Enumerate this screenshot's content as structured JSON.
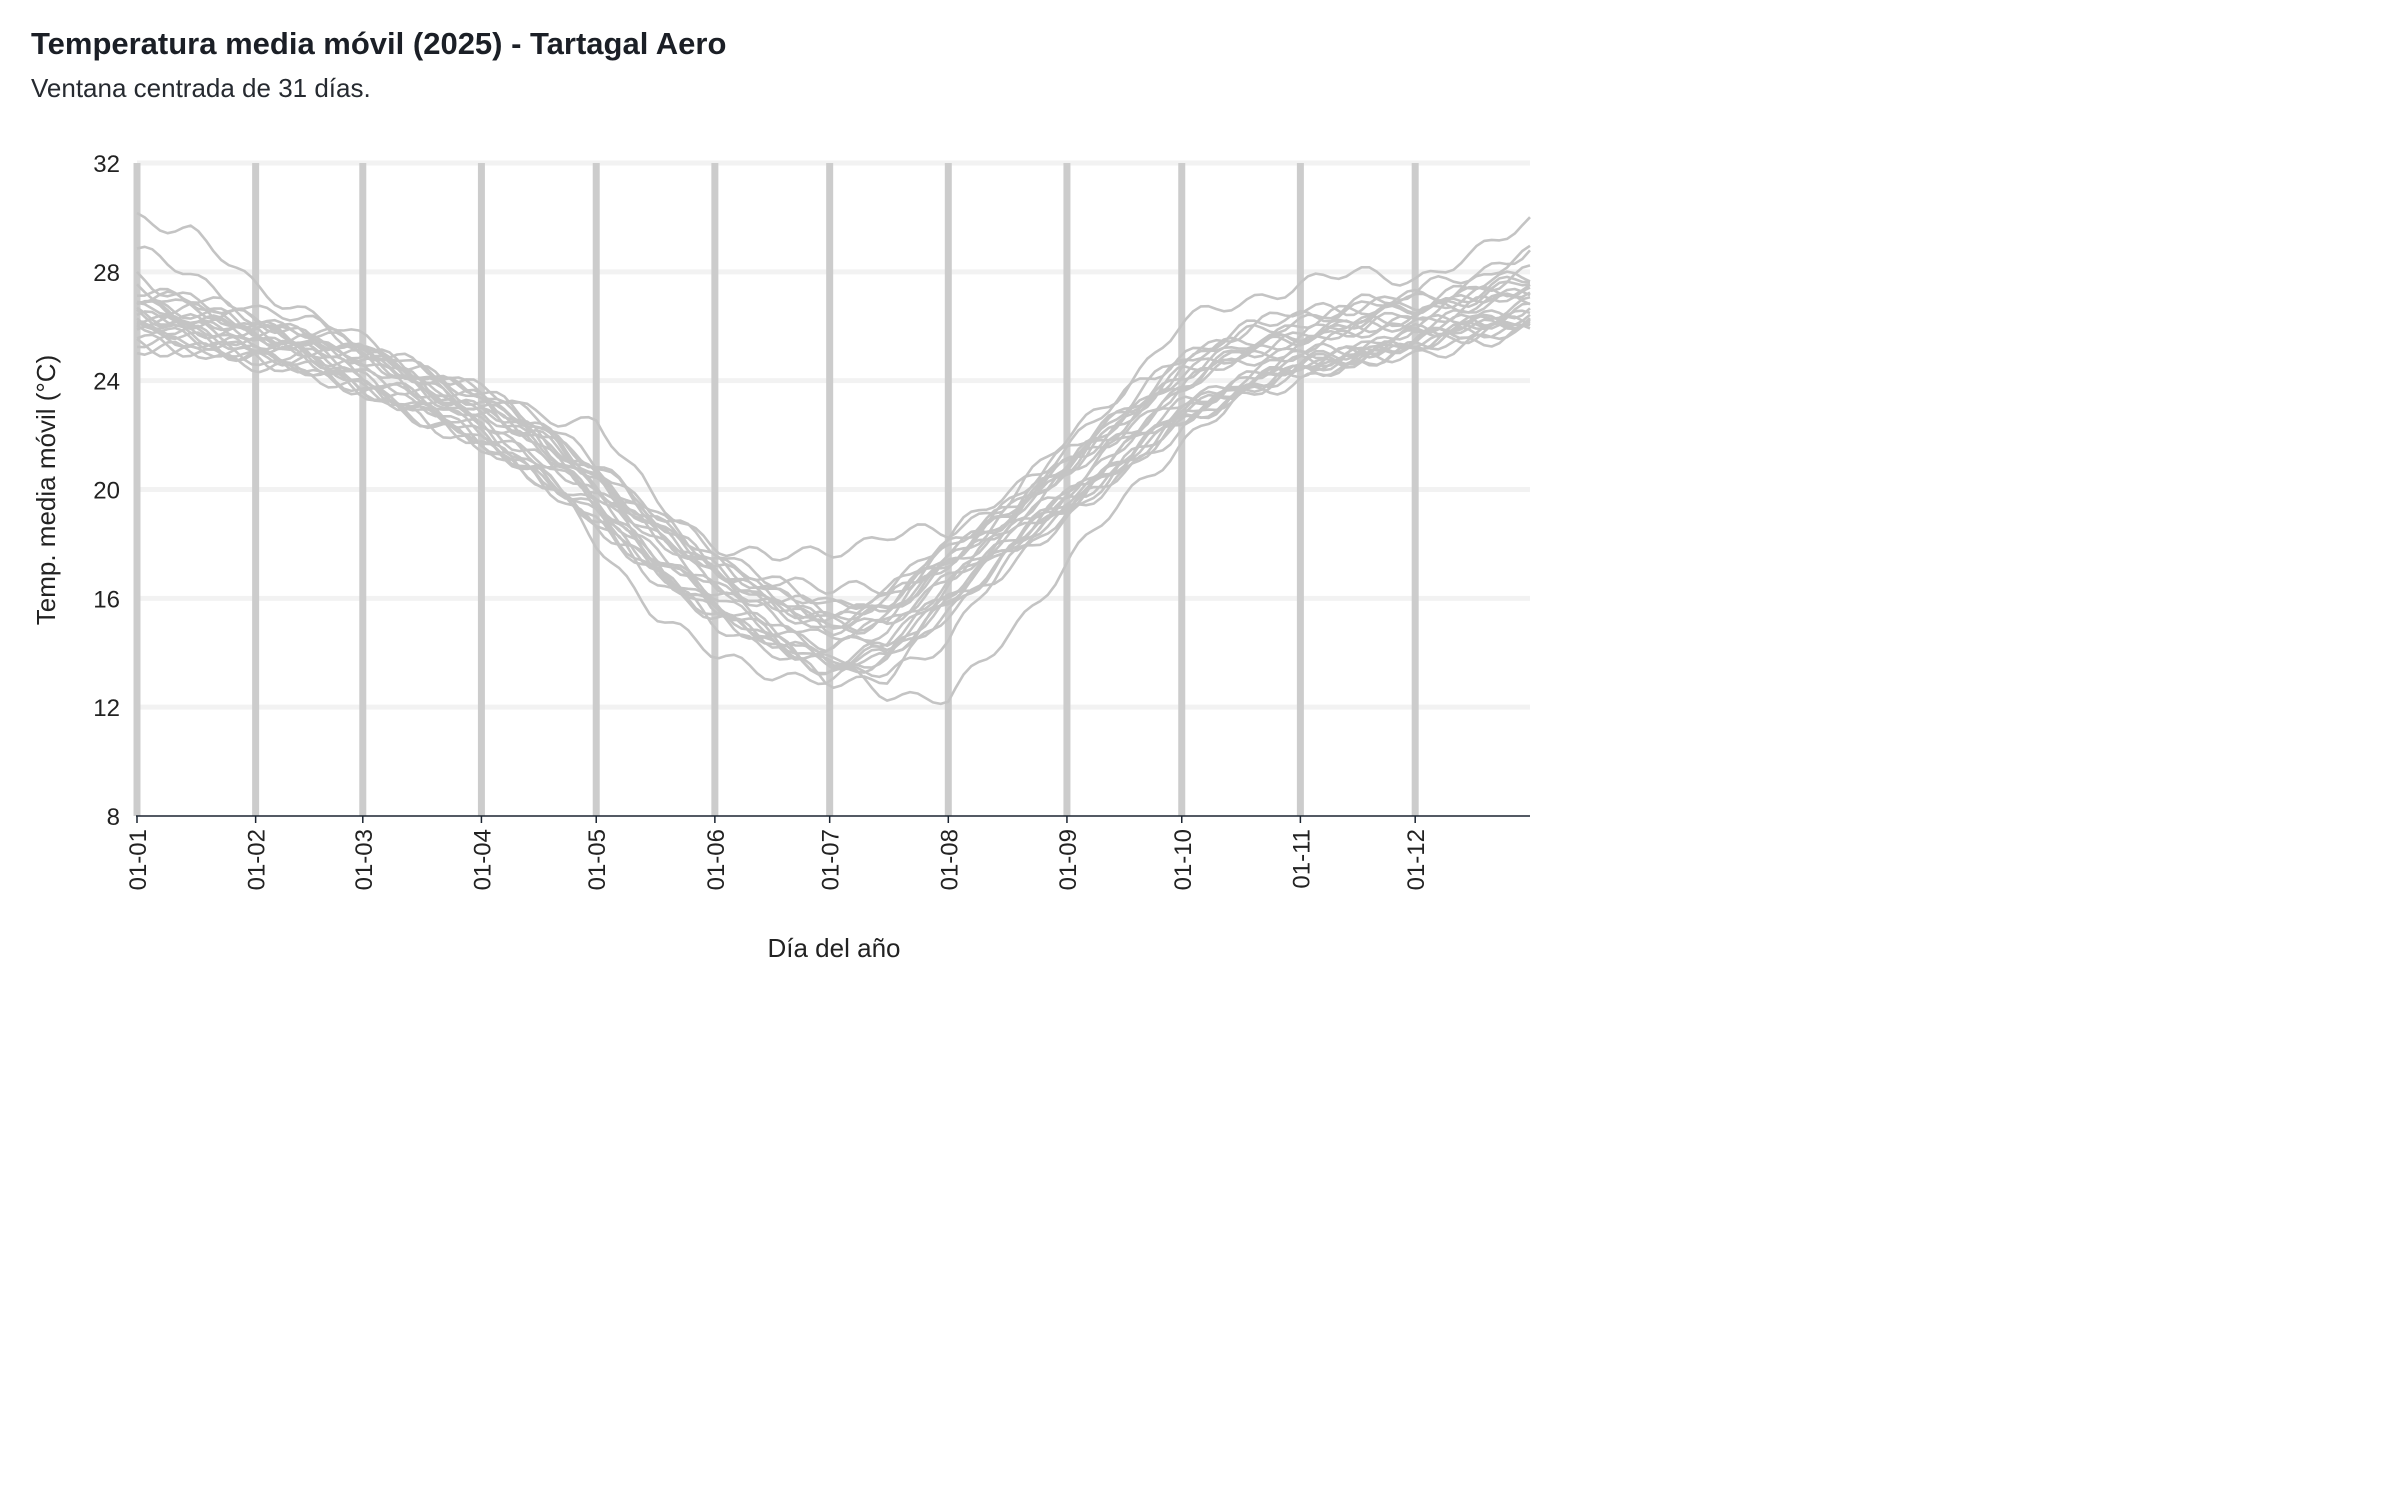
{
  "header": {
    "title": "Temperatura media móvil (2025) - Tartagal Aero",
    "subtitle": "Ventana centrada de 31 días."
  },
  "chart_data": {
    "type": "line",
    "title": "Temperatura media móvil (2025) - Tartagal Aero",
    "subtitle": "Ventana centrada de 31 días.",
    "xlabel": "Día del año",
    "ylabel": "Temp. media móvil (°C)",
    "ylim": [
      8,
      32
    ],
    "yticks": [
      8,
      12,
      16,
      20,
      24,
      28,
      32
    ],
    "xlim": [
      "01-01",
      "12-31"
    ],
    "xticks": [
      "01-01",
      "01-02",
      "01-03",
      "01-04",
      "01-05",
      "01-06",
      "01-07",
      "01-08",
      "01-09",
      "01-10",
      "01-11",
      "01-12"
    ],
    "xtick_days": [
      1,
      32,
      60,
      91,
      121,
      152,
      182,
      213,
      244,
      274,
      305,
      335
    ],
    "grid": {
      "horizontal": true,
      "vertical_month_lines": true
    },
    "legend": "none",
    "colors": {
      "series": "#c4c4c4",
      "month_lines": "#cccccc",
      "grid": "#f2f2f2",
      "axis": "#1b2430",
      "title": "#1b1f26"
    },
    "series_template_days": [
      1,
      15,
      32,
      46,
      60,
      75,
      91,
      105,
      121,
      136,
      152,
      167,
      182,
      197,
      213,
      228,
      244,
      259,
      274,
      290,
      305,
      320,
      335,
      350,
      365
    ],
    "series": [
      {
        "values": [
          26.3,
          26.0,
          25.5,
          25.1,
          24.4,
          23.5,
          22.4,
          21.4,
          19.6,
          17.9,
          16.3,
          15.4,
          14.6,
          14.9,
          16.9,
          18.4,
          20.0,
          21.7,
          23.2,
          24.2,
          24.9,
          25.3,
          25.9,
          26.3,
          26.8
        ]
      },
      {
        "values": [
          27.8,
          27.1,
          26.0,
          25.8,
          25.0,
          23.9,
          22.9,
          21.6,
          20.2,
          18.8,
          17.2,
          16.1,
          15.4,
          15.9,
          17.6,
          18.9,
          20.8,
          22.6,
          24.6,
          25.6,
          26.3,
          26.8,
          27.0,
          27.6,
          28.6
        ]
      },
      {
        "values": [
          25.2,
          25.0,
          24.7,
          24.3,
          23.8,
          22.6,
          21.5,
          20.6,
          18.7,
          16.8,
          15.3,
          14.3,
          13.4,
          13.6,
          15.6,
          17.5,
          19.2,
          20.6,
          22.4,
          23.6,
          24.3,
          24.8,
          25.2,
          25.7,
          26.1
        ]
      },
      {
        "values": [
          26.9,
          26.4,
          25.9,
          25.5,
          25.0,
          24.1,
          23.3,
          22.3,
          20.6,
          18.8,
          17.4,
          16.3,
          15.6,
          16.1,
          17.7,
          19.3,
          21.1,
          22.8,
          24.3,
          25.2,
          25.7,
          26.1,
          26.6,
          27.1,
          27.6
        ]
      },
      {
        "values": [
          26.0,
          25.7,
          25.2,
          24.9,
          24.1,
          23.1,
          22.1,
          20.9,
          19.3,
          17.4,
          15.8,
          14.8,
          13.8,
          14.2,
          16.3,
          17.9,
          19.6,
          21.2,
          22.9,
          23.9,
          24.6,
          25.0,
          25.6,
          26.0,
          26.5
        ]
      },
      {
        "values": [
          27.3,
          26.8,
          26.2,
          25.6,
          25.2,
          24.4,
          23.8,
          22.6,
          21.0,
          19.2,
          17.7,
          16.8,
          16.2,
          16.5,
          18.2,
          19.8,
          21.6,
          23.4,
          25.0,
          25.8,
          26.4,
          26.7,
          27.0,
          27.4,
          27.9
        ]
      },
      {
        "values": [
          25.6,
          25.3,
          24.9,
          24.4,
          23.5,
          22.7,
          21.7,
          20.5,
          18.9,
          17.1,
          15.5,
          14.4,
          13.3,
          13.7,
          15.9,
          17.6,
          19.4,
          21.0,
          22.6,
          23.8,
          24.5,
          25.0,
          25.4,
          25.9,
          26.3
        ]
      },
      {
        "values": [
          26.7,
          26.3,
          25.7,
          25.4,
          24.9,
          23.9,
          23.0,
          22.0,
          20.3,
          18.4,
          17.0,
          15.9,
          15.1,
          15.6,
          17.3,
          18.9,
          20.8,
          22.4,
          24.0,
          25.0,
          25.5,
          26.0,
          26.4,
          26.9,
          27.3
        ]
      },
      {
        "values": [
          30.1,
          29.4,
          27.5,
          26.5,
          25.4,
          24.6,
          23.6,
          22.8,
          22.5,
          19.6,
          18.0,
          17.4,
          17.8,
          18.3,
          18.4,
          19.6,
          21.8,
          23.8,
          26.1,
          26.9,
          27.6,
          27.9,
          27.8,
          28.5,
          29.9
        ]
      },
      {
        "values": [
          25.9,
          25.6,
          25.2,
          24.7,
          23.8,
          23.0,
          21.9,
          20.8,
          18.0,
          15.6,
          13.8,
          13.3,
          13.0,
          13.3,
          14.5,
          17.2,
          19.0,
          20.9,
          22.5,
          23.6,
          24.3,
          24.7,
          25.1,
          25.5,
          25.9
        ]
      },
      {
        "values": [
          26.5,
          26.1,
          25.6,
          25.2,
          24.6,
          23.7,
          22.8,
          21.8,
          20.0,
          18.1,
          16.6,
          15.6,
          14.8,
          15.3,
          17.1,
          18.7,
          20.4,
          22.1,
          23.7,
          24.7,
          25.3,
          25.6,
          26.1,
          26.6,
          27.0
        ]
      },
      {
        "values": [
          28.7,
          27.9,
          26.6,
          26.1,
          25.3,
          24.3,
          23.2,
          21.9,
          20.4,
          18.6,
          16.8,
          15.8,
          14.9,
          15.5,
          17.5,
          19.0,
          20.9,
          22.9,
          24.9,
          25.9,
          26.5,
          26.8,
          27.2,
          27.9,
          28.9
        ]
      },
      {
        "values": [
          25.4,
          25.1,
          24.8,
          24.3,
          23.6,
          22.7,
          21.6,
          20.4,
          18.8,
          17.0,
          15.2,
          14.0,
          12.9,
          13.2,
          15.3,
          17.2,
          19.1,
          20.7,
          22.3,
          23.4,
          24.1,
          24.6,
          25.0,
          25.4,
          25.8
        ]
      },
      {
        "values": [
          26.2,
          25.9,
          25.4,
          25.0,
          24.3,
          23.4,
          22.5,
          21.3,
          19.7,
          17.7,
          16.1,
          15.1,
          14.2,
          14.6,
          16.7,
          18.2,
          19.9,
          21.5,
          23.1,
          24.1,
          24.8,
          25.2,
          25.7,
          26.2,
          26.6
        ]
      },
      {
        "values": [
          27.0,
          26.6,
          25.8,
          25.6,
          24.8,
          24.0,
          23.1,
          22.2,
          20.5,
          18.5,
          16.9,
          15.8,
          15.0,
          15.2,
          16.6,
          18.1,
          19.8,
          21.9,
          23.8,
          25.1,
          25.8,
          26.2,
          26.7,
          27.2,
          27.7
        ]
      },
      {
        "values": [
          25.8,
          25.5,
          25.0,
          24.6,
          23.9,
          22.9,
          21.9,
          20.7,
          19.1,
          17.2,
          15.6,
          14.6,
          13.6,
          14.0,
          16.1,
          17.8,
          19.5,
          21.1,
          22.8,
          23.9,
          24.5,
          24.9,
          25.5,
          25.9,
          26.4
        ]
      },
      {
        "values": [
          26.4,
          26.1,
          25.5,
          25.1,
          24.5,
          23.6,
          22.6,
          21.5,
          19.8,
          17.6,
          15.7,
          14.5,
          13.6,
          12.6,
          12.2,
          14.6,
          17.3,
          19.6,
          21.8,
          23.4,
          24.4,
          25.1,
          25.8,
          26.3,
          26.7
        ]
      },
      {
        "values": [
          27.2,
          26.8,
          26.0,
          25.7,
          25.1,
          24.2,
          23.4,
          22.4,
          20.8,
          18.9,
          17.2,
          16.2,
          15.3,
          15.8,
          17.5,
          19.1,
          20.9,
          22.6,
          24.2,
          25.1,
          25.6,
          26.0,
          26.4,
          26.9,
          27.4
        ]
      },
      {
        "values": [
          25.5,
          25.2,
          24.8,
          24.4,
          23.7,
          22.8,
          21.8,
          20.6,
          18.9,
          17.0,
          15.4,
          14.4,
          13.5,
          13.9,
          16.0,
          17.7,
          19.4,
          21.0,
          22.7,
          23.8,
          24.4,
          24.9,
          25.3,
          25.8,
          26.2
        ]
      },
      {
        "values": [
          26.8,
          26.5,
          25.9,
          25.5,
          25.0,
          24.0,
          23.2,
          22.2,
          20.5,
          18.6,
          17.1,
          16.0,
          15.2,
          15.7,
          17.4,
          19.0,
          20.9,
          22.5,
          24.1,
          25.1,
          25.6,
          26.1,
          26.5,
          27.0,
          27.5
        ]
      },
      {
        "values": [
          26.1,
          25.8,
          25.3,
          24.9,
          24.2,
          23.3,
          22.3,
          21.2,
          19.5,
          17.6,
          16.0,
          15.0,
          14.1,
          14.5,
          16.5,
          18.1,
          19.8,
          21.4,
          23.0,
          24.0,
          24.7,
          25.1,
          25.6,
          26.1,
          26.6
        ]
      },
      {
        "values": [
          27.5,
          27.0,
          26.3,
          25.9,
          25.2,
          24.4,
          23.5,
          22.5,
          20.9,
          19.1,
          17.5,
          16.5,
          15.8,
          16.2,
          17.9,
          19.5,
          21.3,
          23.0,
          24.6,
          25.5,
          26.1,
          26.5,
          26.9,
          27.4,
          27.9
        ]
      },
      {
        "values": [
          25.7,
          25.4,
          24.9,
          24.5,
          23.8,
          22.9,
          21.9,
          20.7,
          19.0,
          17.1,
          15.5,
          14.5,
          13.5,
          13.9,
          16.0,
          17.7,
          19.5,
          21.1,
          22.7,
          23.8,
          24.5,
          24.9,
          25.4,
          25.9,
          26.3
        ]
      },
      {
        "values": [
          26.6,
          26.2,
          25.6,
          25.3,
          24.7,
          23.8,
          22.9,
          21.9,
          20.2,
          18.2,
          16.7,
          15.7,
          14.9,
          15.4,
          17.2,
          18.8,
          20.6,
          22.2,
          23.8,
          24.8,
          25.4,
          25.8,
          26.2,
          26.7,
          27.2
        ]
      }
    ]
  }
}
